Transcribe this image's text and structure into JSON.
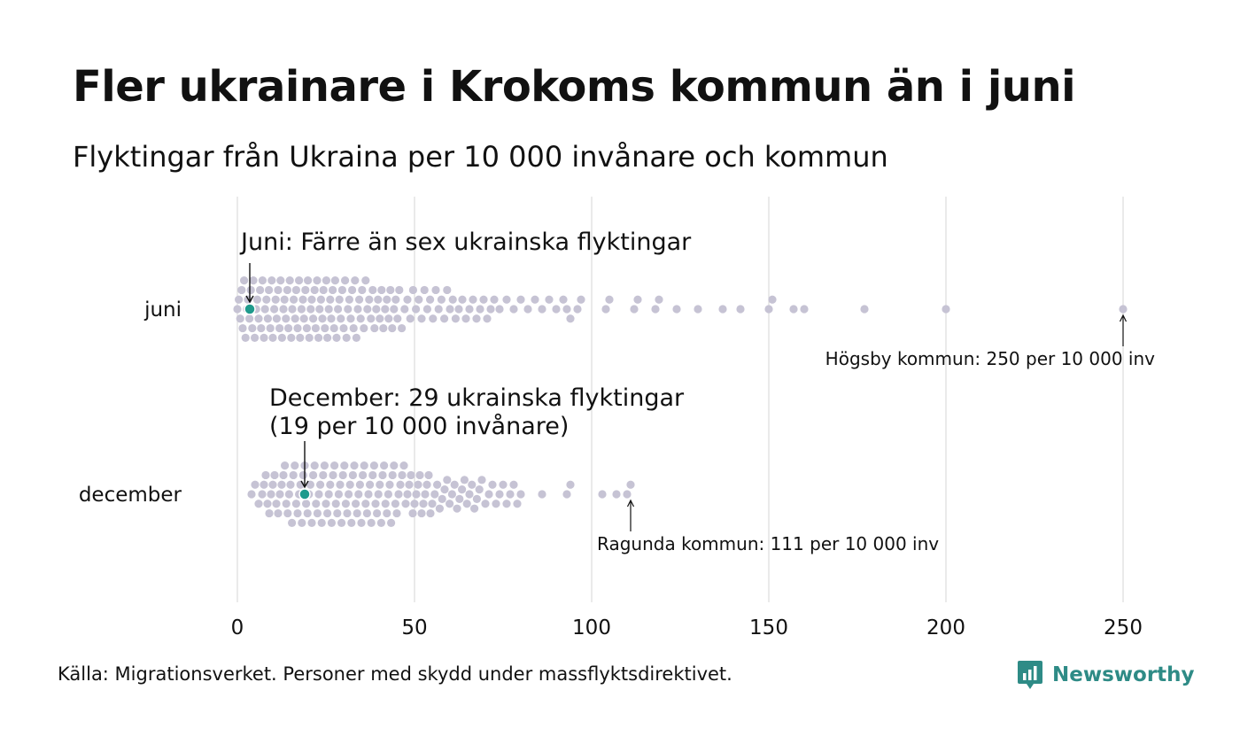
{
  "title": "Fler ukrainare i Krokoms kommun än i juni",
  "subtitle": "Flyktingar från Ukraina per 10 000 invånare och kommun",
  "source": "Källa: Migrationsverket. Personer med skydd under massflyktsdirektivet.",
  "logo": {
    "text": "Newsworthy",
    "icon": "newsworthy-logo-icon"
  },
  "colors": {
    "dot": "#c6c3d4",
    "highlight": "#1f9a8c",
    "grid": "#d4d4d4",
    "text": "#111111",
    "brand": "#2e8b86"
  },
  "chart_data": {
    "type": "scatter",
    "subtype": "beeswarm",
    "xlim": [
      0,
      250
    ],
    "x_ticks": [
      0,
      50,
      100,
      150,
      200,
      250
    ],
    "grid": true,
    "categories": [
      "juni",
      "december"
    ],
    "series": [
      {
        "name": "juni",
        "values": [
          0,
          0.4,
          0.8,
          1.2,
          1.5,
          1.9,
          2.3,
          2.7,
          3,
          3.4,
          3.8,
          4.2,
          4.5,
          4.9,
          5.3,
          5.6,
          6,
          6.4,
          6.7,
          7.1,
          7.5,
          7.8,
          8.2,
          8.6,
          8.9,
          9.3,
          9.7,
          10,
          10.4,
          10.8,
          11.1,
          11.5,
          11.9,
          12.2,
          12.6,
          13,
          13.3,
          13.7,
          14.1,
          14.4,
          14.8,
          15.2,
          15.5,
          15.9,
          16.3,
          16.6,
          17,
          17.4,
          17.7,
          18.1,
          18.5,
          18.8,
          19.2,
          19.6,
          19.9,
          20.3,
          20.7,
          21,
          21.4,
          21.8,
          22.1,
          22.5,
          22.9,
          23.2,
          23.6,
          24,
          24.3,
          24.7,
          25.1,
          25.4,
          25.8,
          26.2,
          26.5,
          26.9,
          27.3,
          27.6,
          28,
          28.4,
          28.8,
          29.2,
          29.6,
          30,
          30.4,
          30.8,
          31.2,
          31.6,
          32,
          32.4,
          32.8,
          33.2,
          33.6,
          34,
          34.4,
          34.8,
          35.2,
          35.7,
          36.2,
          36.7,
          37.2,
          37.7,
          38.2,
          38.7,
          39.2,
          39.7,
          40.2,
          40.7,
          41.2,
          41.7,
          42.2,
          42.7,
          43.2,
          43.7,
          44.2,
          44.7,
          45.2,
          45.7,
          46.4,
          47.2,
          48,
          48.8,
          49.6,
          50.4,
          51.2,
          52,
          52.8,
          53.6,
          54.4,
          55.2,
          56,
          56.8,
          57.6,
          58.4,
          59.2,
          60,
          60.8,
          61.6,
          62.5,
          63.5,
          64.5,
          65.5,
          66.5,
          67.5,
          68.5,
          69.5,
          70.5,
          71.5,
          72.5,
          74,
          76,
          78,
          80,
          82,
          84,
          86,
          88,
          90,
          92,
          93,
          94,
          96,
          97,
          104,
          105,
          112,
          113,
          118,
          119,
          124,
          130,
          137,
          142,
          150,
          151,
          157,
          160,
          177,
          200,
          250
        ]
      },
      {
        "name": "december",
        "values": [
          4,
          5,
          6,
          7,
          7.5,
          8,
          8.5,
          9,
          9.5,
          10,
          10.5,
          11,
          11.5,
          12,
          12.5,
          13,
          13.4,
          13.8,
          14.2,
          14.6,
          15,
          15.4,
          15.8,
          16.2,
          16.6,
          17,
          17.4,
          17.8,
          18.2,
          18.6,
          19,
          19.4,
          19.8,
          20.2,
          20.6,
          21,
          21.4,
          21.8,
          22.2,
          22.6,
          23,
          23.4,
          23.8,
          24.2,
          24.6,
          25,
          25.4,
          25.8,
          26.2,
          26.6,
          27,
          27.4,
          27.8,
          28.2,
          28.6,
          29,
          29.4,
          29.8,
          30.2,
          30.6,
          31,
          31.4,
          31.8,
          32.2,
          32.6,
          33,
          33.4,
          33.8,
          34.2,
          34.6,
          35,
          35.4,
          35.8,
          36.2,
          36.6,
          37,
          37.4,
          37.8,
          38.2,
          38.6,
          39,
          39.4,
          39.8,
          40.2,
          40.6,
          41,
          41.4,
          41.8,
          42.2,
          42.6,
          43,
          43.4,
          43.8,
          44.2,
          44.6,
          45,
          45.5,
          46,
          46.5,
          47,
          47.5,
          48,
          48.5,
          49,
          49.5,
          50,
          50.5,
          51,
          51.5,
          52,
          52.5,
          53,
          53.5,
          54,
          54.5,
          55,
          55.7,
          56.4,
          57.1,
          57.8,
          58.5,
          59.2,
          59.9,
          60.6,
          61.3,
          62,
          62.7,
          63.4,
          64.1,
          64.8,
          65.5,
          66.2,
          66.9,
          67.6,
          68.3,
          69,
          70,
          71,
          72,
          73,
          74,
          75,
          76,
          77,
          78,
          79,
          80,
          86,
          93,
          94,
          103,
          107,
          110,
          111
        ]
      }
    ],
    "highlight": [
      {
        "category": "juni",
        "value": 3.5,
        "label": "Juni: Färre än sex ukrainska flyktingar"
      },
      {
        "category": "december",
        "value": 19,
        "label_lines": [
          "December: 29 ukrainska flyktingar",
          "(19 per 10 000 invånare)"
        ]
      }
    ],
    "annotations": [
      {
        "category": "juni",
        "value": 250,
        "label": "Högsby kommun: 250 per 10 000 inv"
      },
      {
        "category": "december",
        "value": 111,
        "label": "Ragunda kommun: 111 per 10 000 inv"
      }
    ]
  }
}
